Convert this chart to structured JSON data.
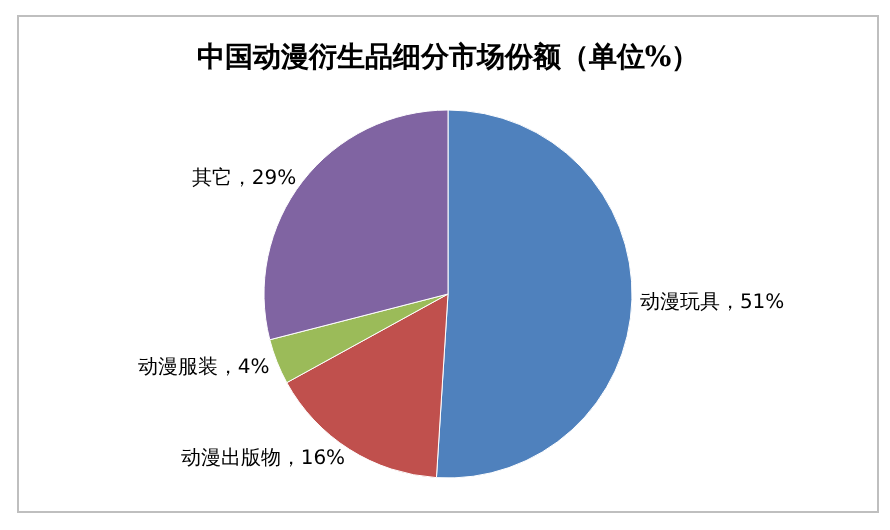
{
  "chart_data": {
    "type": "pie",
    "title": "中国动漫衍生品细分市场份额（单位%）",
    "categories": [
      "动漫玩具",
      "动漫出版物",
      "动漫服装",
      "其它"
    ],
    "values": [
      51,
      16,
      4,
      29
    ],
    "value_labels": [
      "51%",
      "16%",
      "4%",
      "29%"
    ],
    "colors": [
      "#4f81bd",
      "#c0504d",
      "#9bbb59",
      "#8064a2"
    ]
  }
}
